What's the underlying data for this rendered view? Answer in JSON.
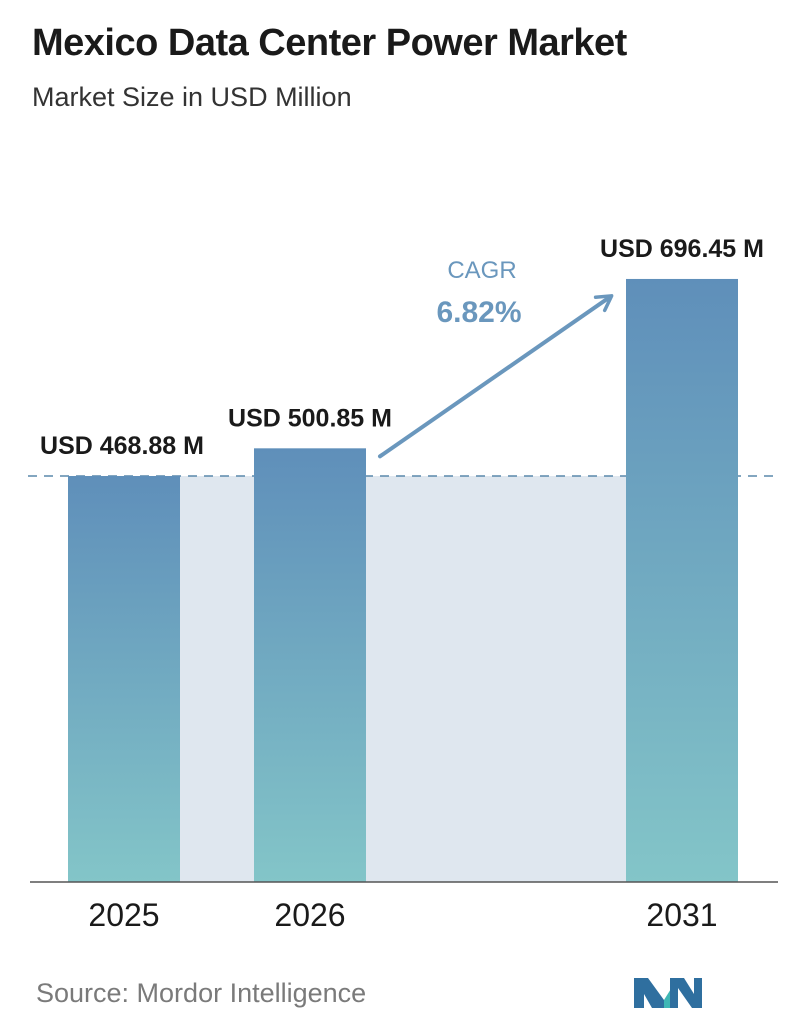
{
  "header": {
    "title": "Mexico Data Center Power Market",
    "subtitle": "Market Size in USD Million"
  },
  "chart_data": {
    "type": "bar",
    "title": "Mexico Data Center Power Market",
    "subtitle": "Market Size in USD Million",
    "categories": [
      "2025",
      "2026",
      "2031"
    ],
    "values": [
      468.88,
      500.85,
      696.45
    ],
    "value_labels": [
      "USD 468.88 M",
      "USD 500.85 M",
      "USD 696.45 M"
    ],
    "ylim": [
      0,
      850
    ],
    "grid": false,
    "annotation": {
      "label": "CAGR",
      "value": "6.82%"
    },
    "colors": {
      "bar_top": "#5f8fba",
      "bar_bottom": "#83c5c8",
      "background_band": "#dfe7ef",
      "reference_line": "#5a88ac",
      "arrow": "#6a97bd",
      "cagr_label": "#6a97bd",
      "axis": "#555555"
    }
  },
  "footer": {
    "source": "Source:  Mordor Intelligence",
    "logo_icon": "mordor-intelligence-logo-icon"
  }
}
